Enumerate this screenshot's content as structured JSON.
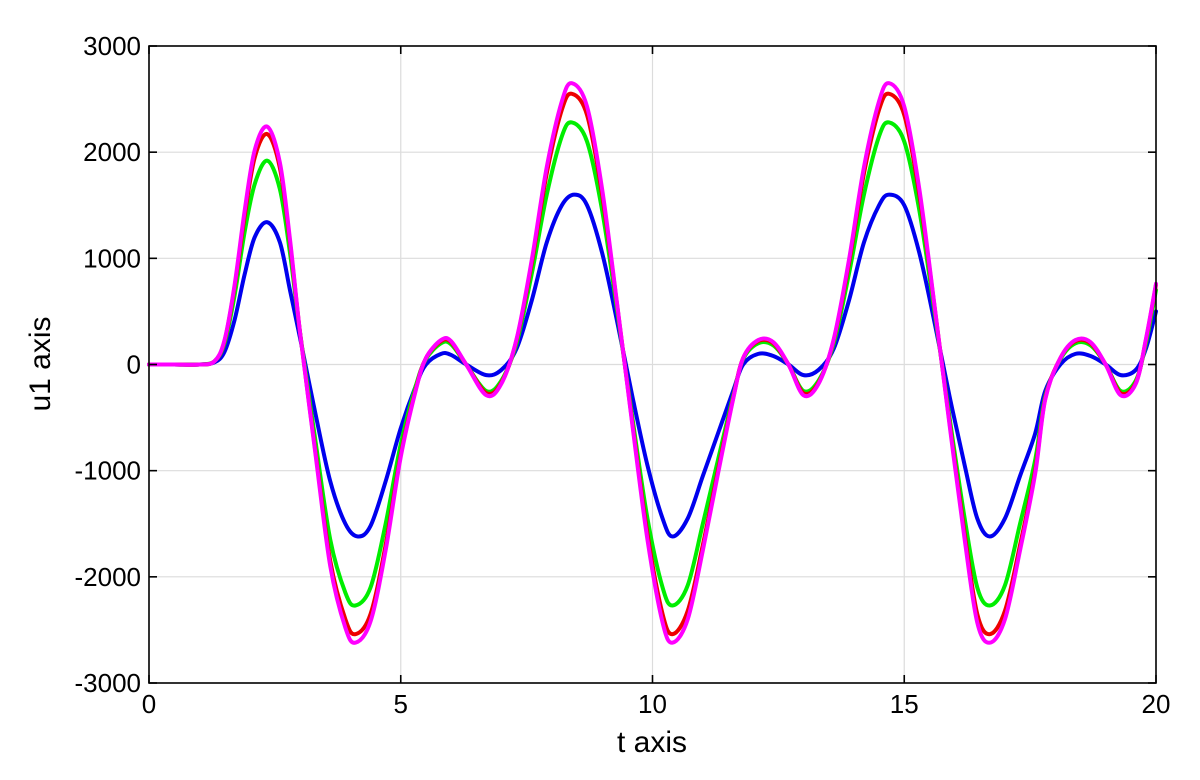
{
  "chart_data": {
    "type": "line",
    "title": "",
    "xlabel": "t axis",
    "ylabel": "u1 axis",
    "xlim": [
      0,
      20
    ],
    "ylim": [
      -3000,
      3000
    ],
    "xticks": [
      0,
      5,
      10,
      15,
      20
    ],
    "yticks": [
      -3000,
      -2000,
      -1000,
      0,
      1000,
      2000,
      3000
    ],
    "grid": true,
    "series": [
      {
        "color": "#0000ee",
        "x": [
          0,
          0.5,
          1,
          1.3,
          1.5,
          1.7,
          1.9,
          2.1,
          2.35,
          2.6,
          2.8,
          3.0,
          3.3,
          3.6,
          3.9,
          4.15,
          4.4,
          4.7,
          5.0,
          5.3,
          5.5,
          5.8,
          6.0,
          6.3,
          6.7,
          7.0,
          7.3,
          7.6,
          7.9,
          8.2,
          8.45,
          8.7,
          9.0,
          9.3,
          9.6,
          9.9,
          10.2,
          10.4,
          10.7,
          11.0,
          11.3,
          11.6,
          11.8,
          12.1,
          12.4,
          12.7,
          13.0,
          13.3,
          13.6,
          13.9,
          14.2,
          14.5,
          14.7,
          15.0,
          15.3,
          15.6,
          15.9,
          16.2,
          16.45,
          16.7,
          17.0,
          17.3,
          17.6,
          17.8,
          18.1,
          18.4,
          18.7,
          19.0,
          19.3,
          19.6,
          19.8,
          20
        ],
        "values": [
          0,
          0,
          0,
          20,
          120,
          420,
          850,
          1200,
          1340,
          1150,
          700,
          250,
          -450,
          -1100,
          -1500,
          -1620,
          -1520,
          -1100,
          -600,
          -200,
          0,
          100,
          90,
          0,
          -100,
          -50,
          150,
          600,
          1150,
          1500,
          1600,
          1500,
          1050,
          400,
          -300,
          -950,
          -1450,
          -1620,
          -1450,
          -1050,
          -650,
          -250,
          0,
          100,
          80,
          0,
          -100,
          -50,
          150,
          600,
          1150,
          1500,
          1600,
          1500,
          1050,
          400,
          -300,
          -950,
          -1450,
          -1620,
          -1450,
          -1050,
          -650,
          -250,
          0,
          100,
          80,
          0,
          -100,
          -50,
          150,
          500
        ]
      },
      {
        "color": "#00ee00",
        "x": [
          0,
          0.5,
          1,
          1.3,
          1.5,
          1.7,
          1.9,
          2.1,
          2.35,
          2.6,
          2.8,
          3.0,
          3.3,
          3.6,
          3.9,
          4.1,
          4.4,
          4.7,
          5.0,
          5.3,
          5.5,
          5.8,
          6.0,
          6.3,
          6.7,
          7.0,
          7.3,
          7.6,
          7.9,
          8.2,
          8.4,
          8.7,
          9.0,
          9.3,
          9.6,
          9.9,
          10.2,
          10.4,
          10.7,
          11.0,
          11.3,
          11.6,
          11.8,
          12.1,
          12.4,
          12.7,
          13.0,
          13.3,
          13.6,
          13.9,
          14.2,
          14.5,
          14.7,
          15.0,
          15.3,
          15.6,
          15.9,
          16.2,
          16.45,
          16.7,
          17.0,
          17.3,
          17.6,
          17.8,
          18.1,
          18.4,
          18.7,
          19.0,
          19.3,
          19.6,
          19.8,
          20
        ],
        "values": [
          0,
          0,
          0,
          30,
          200,
          650,
          1250,
          1700,
          1920,
          1650,
          1050,
          300,
          -700,
          -1650,
          -2150,
          -2270,
          -2100,
          -1500,
          -750,
          -200,
          50,
          200,
          190,
          0,
          -250,
          -150,
          200,
          850,
          1600,
          2150,
          2280,
          2100,
          1450,
          500,
          -500,
          -1450,
          -2100,
          -2270,
          -2080,
          -1500,
          -900,
          -300,
          50,
          200,
          180,
          0,
          -250,
          -150,
          200,
          850,
          1600,
          2150,
          2280,
          2100,
          1450,
          500,
          -500,
          -1450,
          -2100,
          -2270,
          -2080,
          -1500,
          -900,
          -300,
          50,
          200,
          180,
          0,
          -250,
          -150,
          200,
          700
        ]
      },
      {
        "color": "#ee0000",
        "x": [
          0,
          0.5,
          1,
          1.3,
          1.5,
          1.7,
          1.9,
          2.1,
          2.35,
          2.6,
          2.8,
          3.0,
          3.3,
          3.6,
          3.9,
          4.1,
          4.4,
          4.7,
          5.0,
          5.3,
          5.5,
          5.8,
          6.0,
          6.3,
          6.7,
          7.0,
          7.3,
          7.6,
          7.9,
          8.2,
          8.4,
          8.7,
          9.0,
          9.3,
          9.6,
          9.9,
          10.2,
          10.4,
          10.7,
          11.0,
          11.3,
          11.6,
          11.8,
          12.1,
          12.4,
          12.7,
          13.0,
          13.3,
          13.6,
          13.9,
          14.2,
          14.5,
          14.7,
          15.0,
          15.3,
          15.6,
          15.9,
          16.2,
          16.45,
          16.7,
          17.0,
          17.3,
          17.6,
          17.8,
          18.1,
          18.4,
          18.7,
          19.0,
          19.3,
          19.6,
          19.8,
          20
        ],
        "values": [
          0,
          0,
          0,
          30,
          220,
          730,
          1400,
          1950,
          2170,
          1850,
          1150,
          300,
          -800,
          -1850,
          -2400,
          -2540,
          -2350,
          -1700,
          -850,
          -230,
          60,
          220,
          210,
          0,
          -270,
          -170,
          230,
          950,
          1800,
          2400,
          2550,
          2350,
          1600,
          550,
          -550,
          -1600,
          -2350,
          -2540,
          -2320,
          -1700,
          -1000,
          -320,
          60,
          220,
          200,
          0,
          -270,
          -170,
          230,
          950,
          1800,
          2400,
          2550,
          2350,
          1600,
          550,
          -550,
          -1600,
          -2350,
          -2540,
          -2320,
          -1700,
          -1000,
          -320,
          60,
          220,
          200,
          0,
          -270,
          -170,
          230,
          750
        ]
      },
      {
        "color": "#ff00ff",
        "x": [
          0,
          0.5,
          1,
          1.3,
          1.5,
          1.7,
          1.9,
          2.1,
          2.35,
          2.6,
          2.8,
          3.0,
          3.3,
          3.6,
          3.9,
          4.1,
          4.4,
          4.7,
          5.0,
          5.3,
          5.5,
          5.8,
          6.0,
          6.3,
          6.7,
          7.0,
          7.3,
          7.6,
          7.9,
          8.2,
          8.4,
          8.7,
          9.0,
          9.3,
          9.6,
          9.9,
          10.2,
          10.4,
          10.7,
          11.0,
          11.3,
          11.6,
          11.8,
          12.1,
          12.4,
          12.7,
          13.0,
          13.3,
          13.6,
          13.9,
          14.2,
          14.5,
          14.7,
          15.0,
          15.3,
          15.6,
          15.9,
          16.2,
          16.45,
          16.7,
          17.0,
          17.3,
          17.6,
          17.8,
          18.1,
          18.4,
          18.7,
          19.0,
          19.3,
          19.6,
          19.8,
          20
        ],
        "values": [
          0,
          0,
          0,
          30,
          230,
          750,
          1450,
          2020,
          2240,
          1900,
          1180,
          300,
          -820,
          -1900,
          -2480,
          -2620,
          -2420,
          -1750,
          -870,
          -240,
          60,
          230,
          220,
          0,
          -290,
          -180,
          240,
          980,
          1860,
          2480,
          2650,
          2430,
          1650,
          560,
          -570,
          -1650,
          -2430,
          -2620,
          -2400,
          -1750,
          -1030,
          -330,
          60,
          230,
          210,
          0,
          -290,
          -180,
          240,
          980,
          1860,
          2480,
          2650,
          2430,
          1650,
          560,
          -570,
          -1650,
          -2430,
          -2620,
          -2400,
          -1750,
          -1030,
          -330,
          60,
          230,
          210,
          0,
          -290,
          -180,
          240,
          760
        ]
      }
    ]
  }
}
